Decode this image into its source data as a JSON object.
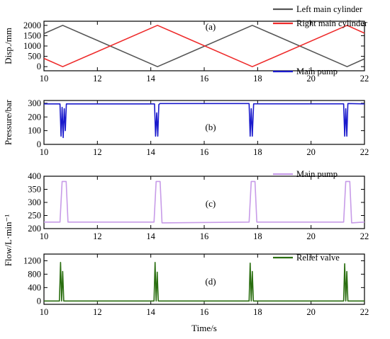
{
  "x_label": "Time/s",
  "chart_data": [
    {
      "type": "line",
      "panel_label": "(a)",
      "ylabel": "Disp./mm",
      "xlim": [
        10,
        22
      ],
      "ylim": [
        -200,
        2200
      ],
      "xticks": [
        10,
        12,
        14,
        16,
        18,
        20,
        22
      ],
      "yticks": [
        0,
        500,
        1000,
        1500,
        2000
      ],
      "legend_position": "top-right-outside",
      "series": [
        {
          "name": "Left main cylinder",
          "color": "#555555",
          "points": [
            [
              10,
              1600
            ],
            [
              10.7,
              2000
            ],
            [
              14.25,
              0
            ],
            [
              17.8,
              2000
            ],
            [
              21.35,
              0
            ],
            [
              22,
              380
            ]
          ]
        },
        {
          "name": "Right main cylinder",
          "color": "#ee2a2a",
          "points": [
            [
              10,
              400
            ],
            [
              10.7,
              0
            ],
            [
              14.25,
              2000
            ],
            [
              17.8,
              0
            ],
            [
              21.35,
              2000
            ],
            [
              22,
              1620
            ]
          ]
        }
      ]
    },
    {
      "type": "line",
      "panel_label": "(b)",
      "ylabel": "Pressure/bar",
      "xlim": [
        10,
        22
      ],
      "ylim": [
        0,
        320
      ],
      "xticks": [
        10,
        12,
        14,
        16,
        18,
        20,
        22
      ],
      "yticks": [
        0,
        100,
        200,
        300
      ],
      "legend_position": "top-right-outside",
      "series": [
        {
          "name": "Main pump",
          "color": "#1a1acc",
          "points": [
            [
              10,
              295
            ],
            [
              10.6,
              295
            ],
            [
              10.64,
              60
            ],
            [
              10.68,
              270
            ],
            [
              10.72,
              50
            ],
            [
              10.76,
              260
            ],
            [
              10.8,
              100
            ],
            [
              10.84,
              295
            ],
            [
              14.14,
              295
            ],
            [
              14.18,
              60
            ],
            [
              14.22,
              230
            ],
            [
              14.26,
              60
            ],
            [
              14.3,
              290
            ],
            [
              14.34,
              298
            ],
            [
              17.68,
              298
            ],
            [
              17.72,
              60
            ],
            [
              17.76,
              260
            ],
            [
              17.8,
              60
            ],
            [
              17.85,
              296
            ],
            [
              21.22,
              296
            ],
            [
              21.26,
              60
            ],
            [
              21.3,
              260
            ],
            [
              21.34,
              60
            ],
            [
              21.38,
              298
            ],
            [
              22,
              295
            ]
          ]
        }
      ]
    },
    {
      "type": "line",
      "panel_label": "(c)",
      "ylabel": "",
      "xlim": [
        10,
        22
      ],
      "ylim": [
        200,
        400
      ],
      "xticks": [
        10,
        12,
        14,
        16,
        18,
        20,
        22
      ],
      "yticks": [
        200,
        250,
        300,
        350,
        400
      ],
      "legend_position": "top-right-outside",
      "series": [
        {
          "name": "Main pump",
          "color": "#c79be8",
          "points": [
            [
              10,
              225
            ],
            [
              10.6,
              225
            ],
            [
              10.68,
              380
            ],
            [
              10.83,
              380
            ],
            [
              10.9,
              225
            ],
            [
              14.12,
              225
            ],
            [
              14.2,
              380
            ],
            [
              14.35,
              380
            ],
            [
              14.42,
              222
            ],
            [
              17.68,
              225
            ],
            [
              17.76,
              380
            ],
            [
              17.9,
              380
            ],
            [
              17.97,
              225
            ],
            [
              21.22,
              225
            ],
            [
              21.3,
              380
            ],
            [
              21.45,
              380
            ],
            [
              21.52,
              222
            ],
            [
              22,
              225
            ]
          ]
        }
      ]
    },
    {
      "type": "line",
      "panel_label": "(d)",
      "ylabel": "",
      "xlim": [
        10,
        22
      ],
      "ylim": [
        -100,
        1400
      ],
      "xticks": [
        10,
        12,
        14,
        16,
        18,
        20,
        22
      ],
      "yticks": [
        0,
        400,
        800,
        1200
      ],
      "legend_position": "top-right-outside",
      "series": [
        {
          "name": "Relief valve",
          "color": "#2a6e10",
          "points": [
            [
              10,
              0
            ],
            [
              10.58,
              0
            ],
            [
              10.62,
              1150
            ],
            [
              10.66,
              0
            ],
            [
              10.7,
              880
            ],
            [
              10.74,
              0
            ],
            [
              14.12,
              0
            ],
            [
              14.16,
              1150
            ],
            [
              14.2,
              0
            ],
            [
              14.24,
              860
            ],
            [
              14.28,
              0
            ],
            [
              17.68,
              0
            ],
            [
              17.72,
              1130
            ],
            [
              17.76,
              0
            ],
            [
              17.8,
              880
            ],
            [
              17.84,
              0
            ],
            [
              21.22,
              0
            ],
            [
              21.26,
              1110
            ],
            [
              21.3,
              0
            ],
            [
              21.34,
              880
            ],
            [
              21.38,
              0
            ],
            [
              22,
              0
            ]
          ]
        }
      ]
    }
  ],
  "shared_ylabel": "Flow/L·min⁻¹"
}
